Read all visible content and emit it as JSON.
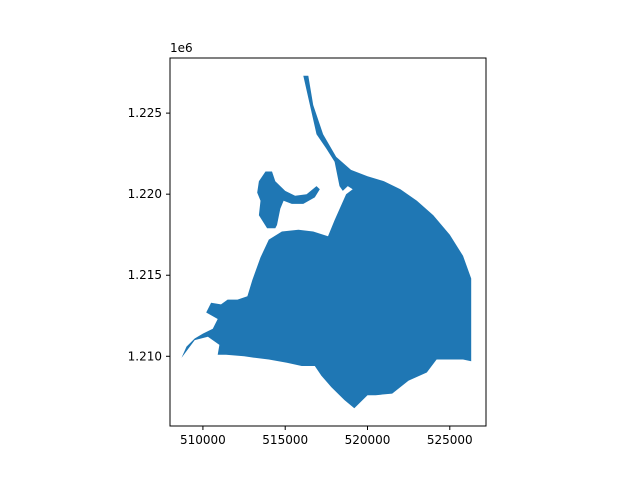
{
  "chart_data": {
    "type": "map",
    "geometry": "polygon",
    "fill_color": "#1f77b4",
    "axes_edge_color": "#000000",
    "xlim": [
      508000,
      527200
    ],
    "ylim": [
      1205700,
      1228400
    ],
    "x_ticks": [
      510000,
      515000,
      520000,
      525000
    ],
    "x_tick_labels": [
      "510000",
      "515000",
      "520000",
      "525000"
    ],
    "y_ticks": [
      1210000,
      1215000,
      1220000,
      1225000
    ],
    "y_tick_labels": [
      "1.210",
      "1.215",
      "1.220",
      "1.225"
    ],
    "y_offset_label": "1e6",
    "main_polygon": [
      [
        516100,
        1227300
      ],
      [
        516400,
        1227300
      ],
      [
        516700,
        1225500
      ],
      [
        517300,
        1223700
      ],
      [
        518100,
        1222300
      ],
      [
        519000,
        1221500
      ],
      [
        520000,
        1221100
      ],
      [
        521000,
        1220800
      ],
      [
        522000,
        1220300
      ],
      [
        523000,
        1219600
      ],
      [
        524000,
        1218700
      ],
      [
        525000,
        1217500
      ],
      [
        525800,
        1216200
      ],
      [
        526300,
        1214800
      ],
      [
        526300,
        1209700
      ],
      [
        525800,
        1209800
      ],
      [
        524200,
        1209800
      ],
      [
        523600,
        1209000
      ],
      [
        522500,
        1208500
      ],
      [
        521500,
        1207700
      ],
      [
        520500,
        1207600
      ],
      [
        520000,
        1207600
      ],
      [
        519200,
        1206800
      ],
      [
        518600,
        1207300
      ],
      [
        517800,
        1208100
      ],
      [
        517200,
        1208800
      ],
      [
        516800,
        1209400
      ],
      [
        516000,
        1209400
      ],
      [
        515100,
        1209600
      ],
      [
        514000,
        1209800
      ],
      [
        513200,
        1209900
      ],
      [
        512500,
        1210000
      ],
      [
        511400,
        1210100
      ],
      [
        510900,
        1210100
      ],
      [
        511000,
        1210700
      ],
      [
        510300,
        1211200
      ],
      [
        509500,
        1211000
      ],
      [
        508700,
        1209900
      ],
      [
        509000,
        1210600
      ],
      [
        509500,
        1211100
      ],
      [
        510000,
        1211400
      ],
      [
        510600,
        1211700
      ],
      [
        510900,
        1212300
      ],
      [
        510200,
        1212700
      ],
      [
        510500,
        1213300
      ],
      [
        511100,
        1213200
      ],
      [
        511500,
        1213500
      ],
      [
        512100,
        1213500
      ],
      [
        512700,
        1213700
      ],
      [
        513000,
        1214700
      ],
      [
        513500,
        1216100
      ],
      [
        514000,
        1217200
      ],
      [
        514800,
        1217700
      ],
      [
        515800,
        1217800
      ],
      [
        516700,
        1217700
      ],
      [
        517600,
        1217400
      ],
      [
        518000,
        1218400
      ],
      [
        518700,
        1220000
      ],
      [
        519100,
        1220300
      ],
      [
        518800,
        1220500
      ],
      [
        518500,
        1220200
      ],
      [
        518300,
        1220500
      ],
      [
        518000,
        1222000
      ],
      [
        517500,
        1222800
      ],
      [
        516900,
        1223700
      ],
      [
        516500,
        1225500
      ]
    ],
    "islands": [
      [
        [
          513800,
          1221400
        ],
        [
          514200,
          1221400
        ],
        [
          514400,
          1220800
        ],
        [
          515000,
          1220200
        ],
        [
          515600,
          1219900
        ],
        [
          516300,
          1220000
        ],
        [
          516900,
          1220500
        ],
        [
          517100,
          1220300
        ],
        [
          516800,
          1219800
        ],
        [
          516100,
          1219400
        ],
        [
          515400,
          1219400
        ],
        [
          514900,
          1219600
        ],
        [
          514700,
          1219100
        ],
        [
          514500,
          1218100
        ],
        [
          514400,
          1217900
        ],
        [
          513900,
          1217900
        ],
        [
          513400,
          1218700
        ],
        [
          513500,
          1219600
        ],
        [
          513300,
          1220100
        ],
        [
          513400,
          1220800
        ]
      ]
    ]
  }
}
